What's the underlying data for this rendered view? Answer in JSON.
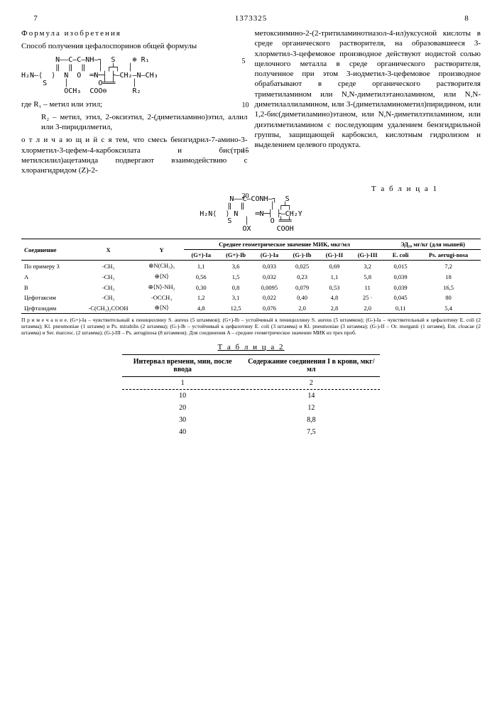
{
  "header": {
    "leftPage": "7",
    "patent": "1373325",
    "rightPage": "8"
  },
  "leftCol": {
    "title": "Формула изобретения",
    "p1": "Способ получения цефалоспоринов общей формулы",
    "formula": "        N——C—C—NH—┐  S    ⊕ R₁\n        ‖  ‖  ‖   │ ┌┴┐  │\nH₂N—⟨  ⟩  N  O  ═N─┤ ├—CH₂—N—CH₃\n     S    │       O╧═╧    │\n          OCH₃  COO⊖      R₂",
    "p2a": "где R₁ – метил или этил;",
    "p2b": "R₂ – метил, этил, 2-оксиэтил, 2-(диметиламино)этил, аллил или 3-пиридилметил,",
    "p3": "о т л и ч а ю щ и й с я тем, что смесь бензгидрил-7-амино-3-хлорме­тил-3-цефем-4-карбоксилата и бис(три­метилсилил)ацетамида подвергают вза­имодействию с хлорангидридом (Z)-2-",
    "ln5": "5",
    "ln10": "10",
    "ln15": "15",
    "ln20": "20"
  },
  "rightCol": {
    "p1": "метоксиимино-2-(2-тритиламинотиазол-4-ил)уксусной кислоты в среде органи­ческого растворителя, на образовав­шееся 3-хлорметил-3-цефемовое произ­водное действуют иодистой солью ще­лочного металла в среде органическо­го растворителя, полученное при этом 3-иодметил-3-цефемовое производное обрабатывают в среде органического растворителя триметиламином или N,N-диметилэтаноламином, или N,N-диметил­аллиламином, или 3-(диметиламино­метил)пиридином, или 1,2-бис(диме­тиламино)этаном, или N,N-диметил­этиламином, или диэтилметиламином с последующим удалением бензгидрильной группы, защищающей карбоксил, кислот­ным гидролизом и выделением целевого продукта."
  },
  "table1": {
    "title": "Т а б л и ц а 1",
    "structFormula": "    N——C—CONH—┐  S\n    ‖  ‖      │ ┌┴┐\nH₂N⟨  ⟩ N    ═N─┤ ├—CH₂Y\n    S   │     O ╧═╧\n        OX      COOH",
    "headers": {
      "c1": "Соединение",
      "c2": "X",
      "c3": "Y",
      "mic": "Среднее геометрическое значение МИК, мкг/мл",
      "ed": "ЭД₅₀ мг/кг (для мышей)",
      "sub": [
        "(G+)-Ia",
        "(G+)-Ib",
        "(G-)-Ia",
        "(G-)-Ib",
        "(G-)-II",
        "(G-)-III",
        "E. coli",
        "Ps. aerugi-nosa"
      ]
    },
    "rows": [
      {
        "c1": "По примеру 3",
        "x": "-CH₃",
        "y": "⊕N(CH₃)₃",
        "v": [
          "1,1",
          "3,6",
          "0,033",
          "0,025",
          "0,69",
          "3,2",
          "0,015",
          "7,2"
        ]
      },
      {
        "c1": "A",
        "x": "-CH₃",
        "y": "⊕⟨N⟩",
        "v": [
          "0,56",
          "1,5",
          "0,032",
          "0,23",
          "1,1",
          "5,8",
          "0,039",
          "18"
        ]
      },
      {
        "c1": "B",
        "x": "-CH₃",
        "y": "⊕⟨N⟩-NH₂",
        "v": [
          "0,30",
          "0,8",
          "0,0095",
          "0,079",
          "0,53",
          "11",
          "0,039",
          "16,5"
        ]
      },
      {
        "c1": "Цефотаксим",
        "x": "-CH₃",
        "y": "-OCCH₃",
        "v": [
          "1,2",
          "3,1",
          "0,022",
          "0,40",
          "4,8",
          "25 ·",
          "0,045",
          "80"
        ]
      },
      {
        "c1": "Цефтазидим",
        "x": "-C(CH₃)₂COOH",
        "y": "⊕⟨N⟩",
        "v": [
          "4,8",
          "12,5",
          "0,076",
          "2,0",
          "2,8",
          "2,0",
          "0,11",
          "5,4"
        ]
      }
    ],
    "footnote": "П р и м е ч а н и е. (G+)-Ia – чувствительный к пенициллину S. aureus (5 штаммов); (G+)-Ib – устойчивый к пенициллину S. aureus (5 штаммов); (G-)-Ia – чувствительный к цефалотину E. coli (2 штамма); Kl. pneumoniae (1 штамм) и Ps. mirabilis (2 штамма); (G-)-Ib – устойчивый к цефалотину E. coli (3 штамма) и Kl. pneumoniae (3 штамма); (G-)-II – Or. morganii (1 штамм), Ent. cloacae (2 штамма) и Ser. marcesc. (2 штамма); (G-)-III – Ps. aeruginosa (8 штаммов). Для соединения A – среднее геометрическое значение МИК из трех проб."
  },
  "table2": {
    "title": "Т а б л и ц а 2",
    "h1": "Интервал времени, мин, после ввода",
    "h2": "Содержание соедине­ния I в крови, мкг/мл",
    "sub1": "1",
    "sub2": "2",
    "rows": [
      {
        "t": "10",
        "v": "14"
      },
      {
        "t": "20",
        "v": "12"
      },
      {
        "t": "30",
        "v": "8,8"
      },
      {
        "t": "40",
        "v": "7,5"
      }
    ]
  }
}
